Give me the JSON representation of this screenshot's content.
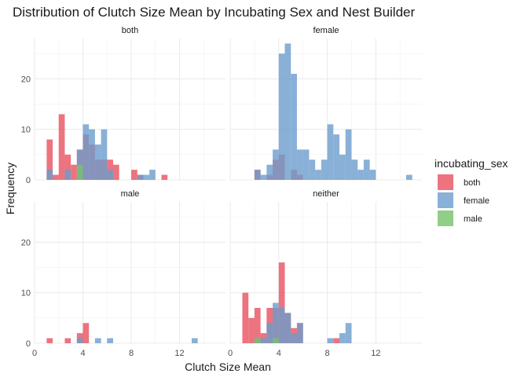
{
  "chart_data": {
    "type": "histogram",
    "title": "Distribution of Clutch Size Mean by Incubating Sex and Nest Builder",
    "xlabel": "Clutch Size Mean",
    "ylabel": "Frequency",
    "xlim": [
      0,
      15.8
    ],
    "ylim": [
      0,
      28
    ],
    "x_ticks": [
      0,
      4,
      8,
      12
    ],
    "y_ticks": [
      0,
      10,
      20
    ],
    "bin_width": 0.5,
    "legend": {
      "title": "incubating_sex",
      "position": "right",
      "entries": [
        "both",
        "female",
        "male"
      ]
    },
    "colors": {
      "both": "#E8505F",
      "female": "#6C9CCC",
      "male": "#76C26A",
      "overlap": "#7E5A8C"
    },
    "facets": [
      {
        "label": "both",
        "series": [
          {
            "name": "both",
            "bins": [
              [
                1.0,
                8
              ],
              [
                1.5,
                1
              ],
              [
                2.0,
                13
              ],
              [
                2.5,
                5
              ],
              [
                3.0,
                3
              ],
              [
                3.5,
                6
              ],
              [
                4.0,
                9
              ],
              [
                4.5,
                7
              ],
              [
                5.0,
                4
              ],
              [
                5.5,
                4
              ],
              [
                6.0,
                4
              ],
              [
                6.5,
                3
              ],
              [
                8.0,
                2
              ],
              [
                8.5,
                1
              ],
              [
                10.5,
                1
              ]
            ]
          },
          {
            "name": "female",
            "bins": [
              [
                1.0,
                2
              ],
              [
                2.5,
                2
              ],
              [
                3.5,
                6
              ],
              [
                4.0,
                11
              ],
              [
                4.5,
                10
              ],
              [
                5.0,
                7
              ],
              [
                5.5,
                10
              ],
              [
                6.0,
                2
              ],
              [
                8.5,
                1
              ],
              [
                9.0,
                1
              ],
              [
                9.5,
                2
              ]
            ]
          },
          {
            "name": "male",
            "bins": [
              [
                3.5,
                3
              ]
            ]
          }
        ]
      },
      {
        "label": "female",
        "series": [
          {
            "name": "both",
            "bins": [
              [
                2.0,
                2
              ],
              [
                3.0,
                1
              ],
              [
                3.5,
                4
              ],
              [
                4.0,
                5
              ],
              [
                5.0,
                2
              ],
              [
                5.5,
                1
              ]
            ]
          },
          {
            "name": "female",
            "bins": [
              [
                2.0,
                2
              ],
              [
                2.5,
                1
              ],
              [
                3.0,
                3
              ],
              [
                3.5,
                6
              ],
              [
                4.0,
                25
              ],
              [
                4.5,
                27
              ],
              [
                5.0,
                21
              ],
              [
                5.5,
                6
              ],
              [
                6.0,
                6
              ],
              [
                6.5,
                4
              ],
              [
                7.0,
                2
              ],
              [
                7.5,
                4
              ],
              [
                8.0,
                11
              ],
              [
                8.5,
                9
              ],
              [
                9.0,
                5
              ],
              [
                9.5,
                10
              ],
              [
                10.0,
                4
              ],
              [
                10.5,
                2
              ],
              [
                11.0,
                4
              ],
              [
                11.5,
                2
              ],
              [
                14.5,
                1
              ]
            ]
          }
        ]
      },
      {
        "label": "male",
        "series": [
          {
            "name": "both",
            "bins": [
              [
                1.0,
                1
              ],
              [
                2.5,
                1
              ],
              [
                3.5,
                2
              ],
              [
                4.0,
                4
              ]
            ]
          },
          {
            "name": "female",
            "bins": [
              [
                3.5,
                1
              ],
              [
                5.0,
                1
              ],
              [
                6.0,
                1
              ],
              [
                13.0,
                1
              ]
            ]
          }
        ]
      },
      {
        "label": "neither",
        "series": [
          {
            "name": "both",
            "bins": [
              [
                1.0,
                10
              ],
              [
                1.5,
                5
              ],
              [
                2.0,
                7
              ],
              [
                2.5,
                2
              ],
              [
                3.0,
                7
              ],
              [
                3.5,
                7
              ],
              [
                4.0,
                16
              ],
              [
                4.5,
                6
              ],
              [
                5.0,
                3
              ],
              [
                5.5,
                4
              ],
              [
                8.5,
                1
              ]
            ]
          },
          {
            "name": "female",
            "bins": [
              [
                2.0,
                1
              ],
              [
                2.5,
                1
              ],
              [
                3.0,
                4
              ],
              [
                3.5,
                8
              ],
              [
                4.0,
                7
              ],
              [
                4.5,
                6
              ],
              [
                5.0,
                2
              ],
              [
                5.5,
                4
              ],
              [
                8.0,
                1
              ],
              [
                9.0,
                2
              ],
              [
                9.5,
                4
              ]
            ]
          },
          {
            "name": "male",
            "bins": [
              [
                2.0,
                1
              ],
              [
                3.5,
                1
              ]
            ]
          }
        ]
      }
    ]
  }
}
